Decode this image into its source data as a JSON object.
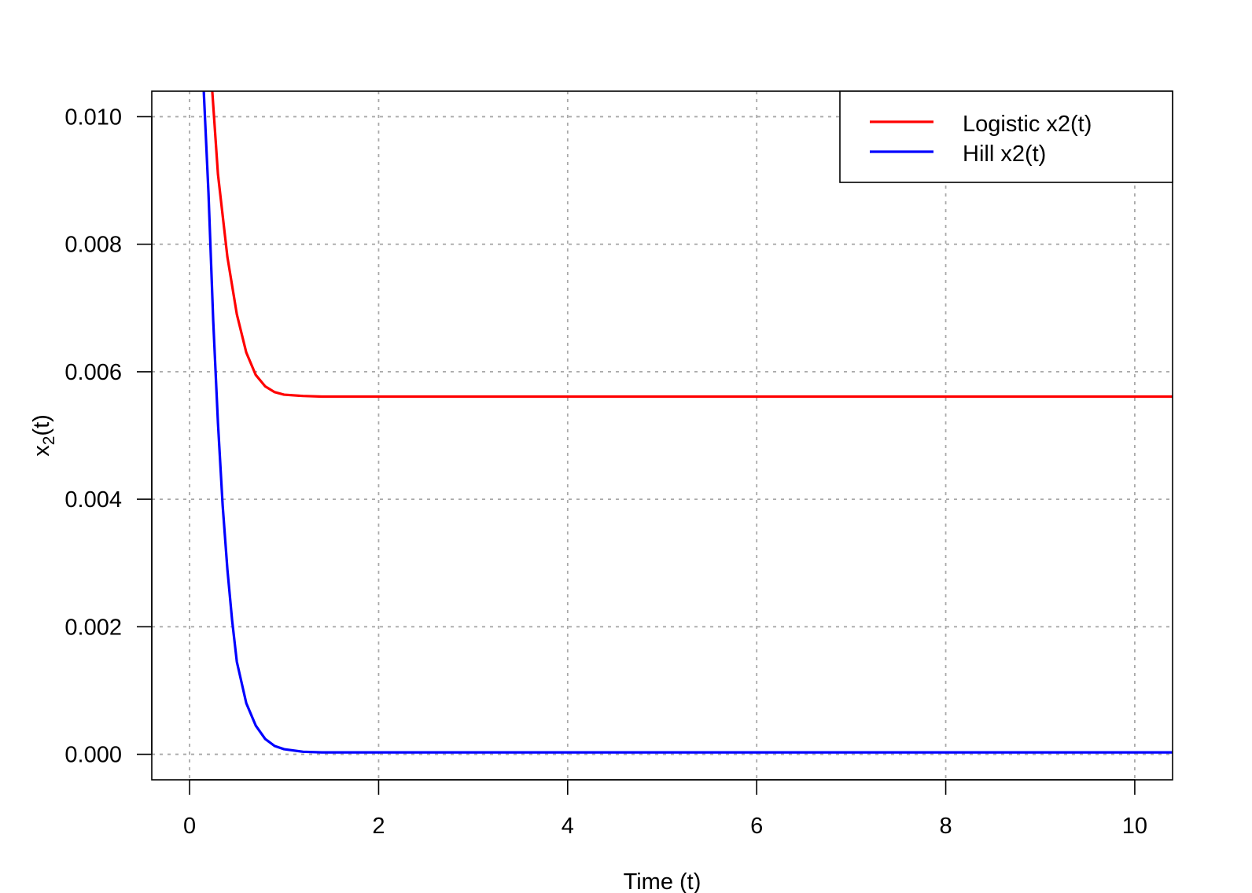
{
  "chart_data": {
    "type": "line",
    "title": "",
    "xlabel": "Time (t)",
    "ylabel": "x2(t)",
    "ylabel_parts": {
      "base": "x",
      "subscript": "2",
      "suffix": "(t)"
    },
    "xlim": [
      -0.4,
      10.4
    ],
    "ylim": [
      -0.0004,
      0.0104
    ],
    "x_ticks": [
      0,
      2,
      4,
      6,
      8,
      10
    ],
    "x_tick_labels": [
      "0",
      "2",
      "4",
      "6",
      "8",
      "10"
    ],
    "y_ticks": [
      0,
      0.002,
      0.004,
      0.006,
      0.008,
      0.01
    ],
    "y_tick_labels": [
      "0.000",
      "0.002",
      "0.004",
      "0.006",
      "0.008",
      "0.010"
    ],
    "grid": true,
    "legend_position": "top-right",
    "series": [
      {
        "name": "Logistic x2(t)",
        "color": "#ff0000",
        "x": [
          0.24,
          0.3,
          0.4,
          0.5,
          0.6,
          0.7,
          0.8,
          0.9,
          1.0,
          1.2,
          1.4,
          1.6,
          2,
          3,
          4,
          5,
          6,
          7,
          8,
          9,
          10,
          10.4
        ],
        "y": [
          0.0104,
          0.0091,
          0.0078,
          0.0069,
          0.0063,
          0.00595,
          0.00577,
          0.00568,
          0.00564,
          0.00562,
          0.00561,
          0.00561,
          0.00561,
          0.00561,
          0.00561,
          0.00561,
          0.00561,
          0.00561,
          0.00561,
          0.00561,
          0.00561,
          0.00561
        ]
      },
      {
        "name": "Hill x2(t)",
        "color": "#0000ff",
        "x": [
          0.15,
          0.2,
          0.25,
          0.3,
          0.35,
          0.4,
          0.45,
          0.5,
          0.6,
          0.7,
          0.8,
          0.9,
          1.0,
          1.2,
          1.4,
          1.6,
          2,
          3,
          4,
          5,
          6,
          7,
          8,
          9,
          10,
          10.4
        ],
        "y": [
          0.0104,
          0.0088,
          0.0068,
          0.0052,
          0.0039,
          0.0029,
          0.0021,
          0.00145,
          0.0008,
          0.00045,
          0.00024,
          0.00013,
          8e-05,
          4e-05,
          3e-05,
          3e-05,
          3e-05,
          3e-05,
          3e-05,
          3e-05,
          3e-05,
          3e-05,
          3e-05,
          3e-05,
          3e-05,
          3e-05
        ]
      }
    ]
  }
}
